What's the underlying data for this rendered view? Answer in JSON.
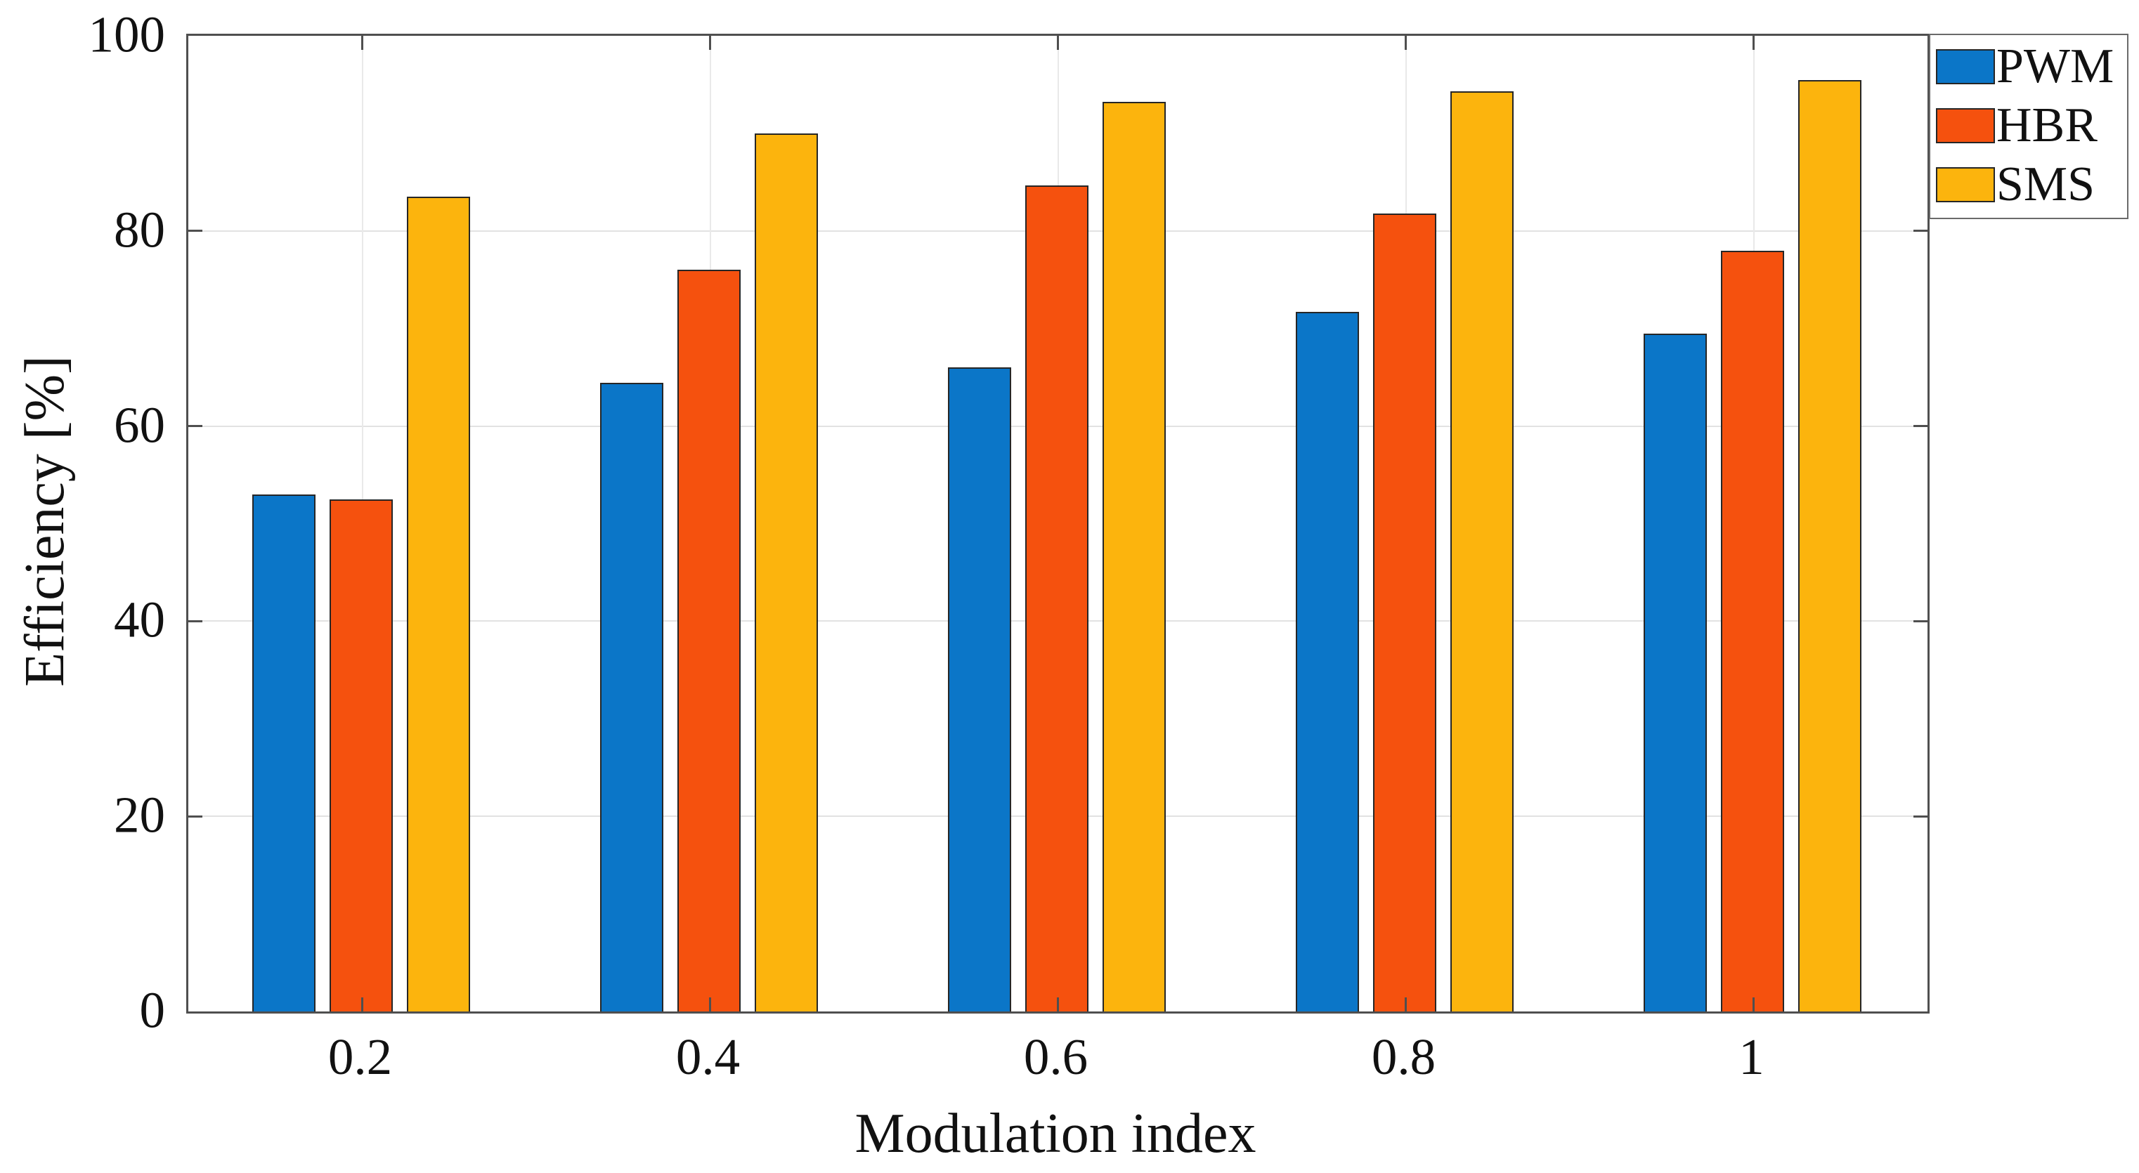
{
  "figure": {
    "background": "#ffffff",
    "axis_color": "#4f4f4f",
    "grid_color": "#e2e2e2",
    "text_color": "#111111",
    "bar_edge_color": "#262626"
  },
  "chart_data": {
    "type": "bar",
    "title": "",
    "xlabel": "Modulation index",
    "ylabel": "Efficiency [%]",
    "categories": [
      "0.2",
      "0.4",
      "0.6",
      "0.8",
      "1"
    ],
    "series": [
      {
        "name": "PWM",
        "color": "#0b76c8",
        "values": [
          53,
          64.4,
          66,
          71.7,
          69.5
        ]
      },
      {
        "name": "HBR",
        "color": "#f5510e",
        "values": [
          52.5,
          76,
          84.7,
          81.8,
          78
        ]
      },
      {
        "name": "SMS",
        "color": "#fcb40d",
        "values": [
          83.5,
          90,
          93.2,
          94.3,
          95.5
        ]
      }
    ],
    "ylim": [
      0,
      100
    ],
    "yticks": [
      0,
      20,
      40,
      60,
      80,
      100
    ],
    "grid": "on",
    "legend_position": "top-right-outside",
    "legend_entries": [
      "PWM",
      "HBR",
      "SMS"
    ]
  }
}
